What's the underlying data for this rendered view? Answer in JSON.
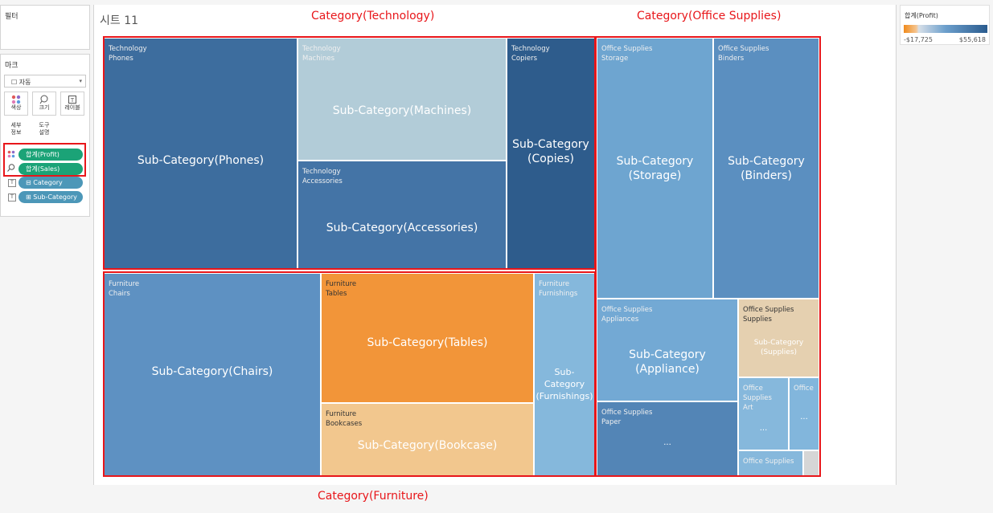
{
  "sidebar": {
    "filters_title": "필터",
    "marks_title": "마크",
    "mark_type": "자동",
    "mark_type_prefix": "☐",
    "buttons": [
      {
        "label": "색상",
        "icon": "color-icon"
      },
      {
        "label": "크기",
        "icon": "size-icon"
      },
      {
        "label": "레이블",
        "icon": "label-icon"
      },
      {
        "label": "세부\n정보",
        "icon": "detail-icon"
      },
      {
        "label": "도구\n설명",
        "icon": "tooltip-icon"
      }
    ],
    "pills": [
      {
        "label": "합계(Profit)",
        "kind": "measure"
      },
      {
        "label": "합계(Sales)",
        "kind": "measure"
      },
      {
        "label": "⊟ Category",
        "kind": "dimension"
      },
      {
        "label": "⊞ Sub-Category",
        "kind": "dimension"
      }
    ]
  },
  "sheet": {
    "title": "시트 11"
  },
  "annotations": {
    "technology": "Category(Technology)",
    "office_supplies": "Category(Office Supplies)",
    "furniture": "Category(Furniture)"
  },
  "legend": {
    "title": "합계(Profit)",
    "min": "-$17,725",
    "max": "$55,618",
    "colors": {
      "negative": "#f08a1c",
      "mid": "#d7dfe8",
      "positive": "#2a5b8e"
    }
  },
  "chart_data": {
    "type": "treemap",
    "size_measure": "합계(Sales)",
    "color_measure": "합계(Profit)",
    "color_range": [
      -17725,
      55618
    ],
    "categories": [
      {
        "name": "Technology",
        "items": [
          {
            "category": "Technology",
            "sub": "Phones",
            "label": "Sub-Category(Phones)",
            "color": "#3d6d9e"
          },
          {
            "category": "Technology",
            "sub": "Machines",
            "label": "Sub-Category(Machines)",
            "color": "#b2ccd8"
          },
          {
            "category": "Technology",
            "sub": "Accessories",
            "label": "Sub-Category(Accessories)",
            "color": "#4474a6"
          },
          {
            "category": "Technology",
            "sub": "Copiers",
            "label": "Sub-Category\n(Copies)",
            "color": "#2e5c8c"
          }
        ]
      },
      {
        "name": "Office Supplies",
        "items": [
          {
            "category": "Office Supplies",
            "sub": "Storage",
            "label": "Sub-Category\n(Storage)",
            "color": "#6ea5d0"
          },
          {
            "category": "Office Supplies",
            "sub": "Binders",
            "label": "Sub-Category\n(Binders)",
            "color": "#5b8fc0"
          },
          {
            "category": "Office Supplies",
            "sub": "Appliances",
            "label": "Sub-Category\n(Appliance)",
            "color": "#73a9d4"
          },
          {
            "category": "Office Supplies",
            "sub": "Supplies",
            "label": "Sub-Category\n(Supplies)",
            "color": "#e5d0b0"
          },
          {
            "category": "Office Supplies",
            "sub": "Paper",
            "label": "...",
            "color": "#5385b6"
          },
          {
            "category": "Office Supplies",
            "sub": "Art",
            "label": "...",
            "color": "#86b8dc"
          },
          {
            "category": "Office",
            "sub": "",
            "label": "...",
            "color": "#82b6dc"
          },
          {
            "category": "Office Supplies",
            "sub": "",
            "label": "",
            "color": "#86b8dc"
          },
          {
            "category": "",
            "sub": "",
            "label": "",
            "color": "#d6d6d6"
          }
        ]
      },
      {
        "name": "Furniture",
        "items": [
          {
            "category": "Furniture",
            "sub": "Chairs",
            "label": "Sub-Category(Chairs)",
            "color": "#5e91c2"
          },
          {
            "category": "Furniture",
            "sub": "Tables",
            "label": "Sub-Category(Tables)",
            "color": "#f29539"
          },
          {
            "category": "Furniture",
            "sub": "Bookcases",
            "label": "Sub-Category(Bookcase)",
            "color": "#f2c78e"
          },
          {
            "category": "Furniture",
            "sub": "Furnishings",
            "label": "Sub-Category\n(Furnishings)",
            "color": "#85b8dc"
          }
        ]
      }
    ]
  }
}
